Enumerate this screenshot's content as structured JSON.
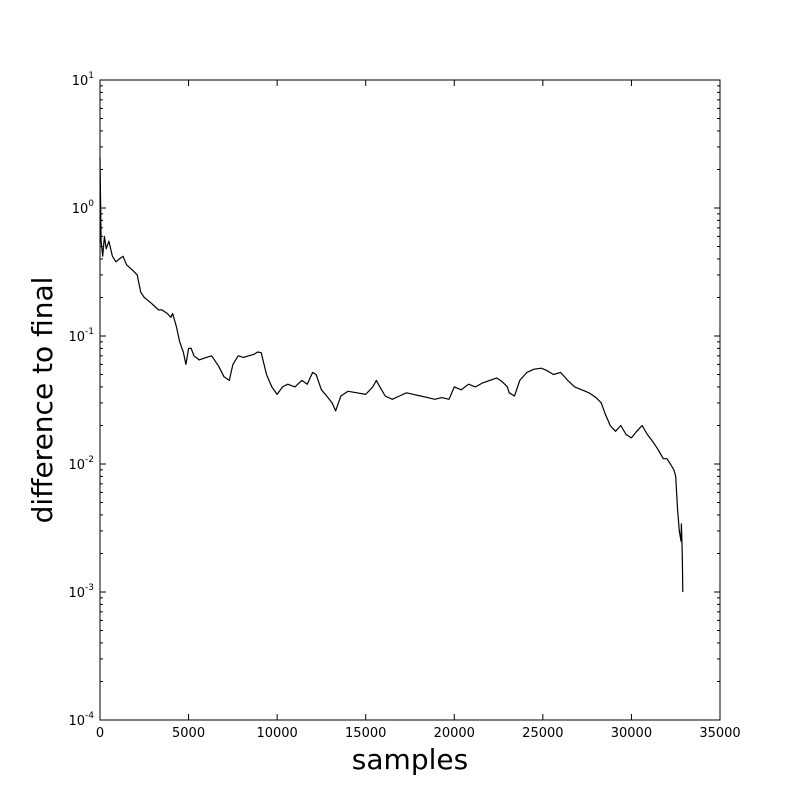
{
  "chart_data": {
    "type": "line",
    "title": "",
    "xlabel": "samples",
    "ylabel": "difference to final",
    "xlim": [
      0,
      35000
    ],
    "ylim": [
      0.0001,
      10
    ],
    "yscale": "log",
    "grid": false,
    "legend": "none",
    "x_ticks": [
      "0",
      "5000",
      "10000",
      "15000",
      "20000",
      "25000",
      "30000",
      "35000"
    ],
    "y_ticks": [
      {
        "base": "10",
        "exp": "1"
      },
      {
        "base": "10",
        "exp": "0"
      },
      {
        "base": "10",
        "exp": "-1"
      },
      {
        "base": "10",
        "exp": "-2"
      },
      {
        "base": "10",
        "exp": "-3"
      },
      {
        "base": "10",
        "exp": "-4"
      }
    ],
    "line_color": "#000000",
    "series": [
      {
        "x": [
          0,
          60,
          150,
          250,
          350,
          500,
          700,
          900,
          1100,
          1300,
          1500,
          1800,
          2100,
          2300,
          2500,
          2700,
          2900,
          3100,
          3300,
          3500,
          3800,
          4000,
          4100,
          4300,
          4500,
          4700,
          4850,
          5000,
          5150,
          5300,
          5600,
          6000,
          6300,
          6700,
          7000,
          7300,
          7500,
          7800,
          8100,
          8400,
          8700,
          8900,
          9100,
          9400,
          9700,
          10000,
          10300,
          10600,
          11000,
          11400,
          11700,
          12000,
          12200,
          12500,
          12800,
          13100,
          13300,
          13600,
          14000,
          14500,
          15000,
          15400,
          15600,
          15800,
          16100,
          16500,
          16900,
          17300,
          17700,
          18100,
          18500,
          18900,
          19300,
          19700,
          20000,
          20400,
          20800,
          21200,
          21600,
          22000,
          22400,
          22700,
          23000,
          23100,
          23400,
          23700,
          24100,
          24500,
          24900,
          25200,
          25600,
          26000,
          26400,
          26800,
          27200,
          27600,
          28000,
          28300,
          28500,
          28800,
          29100,
          29400,
          29700,
          30000,
          30300,
          30600,
          30900,
          31200,
          31500,
          31800,
          32000,
          32200,
          32400,
          32500,
          32550,
          32600,
          32700,
          32800,
          32820,
          32850,
          32870,
          32900
        ],
        "y": [
          2.5,
          0.55,
          0.42,
          0.6,
          0.48,
          0.55,
          0.42,
          0.38,
          0.4,
          0.42,
          0.36,
          0.33,
          0.3,
          0.22,
          0.2,
          0.19,
          0.18,
          0.17,
          0.16,
          0.16,
          0.15,
          0.14,
          0.15,
          0.12,
          0.09,
          0.075,
          0.06,
          0.08,
          0.08,
          0.07,
          0.065,
          0.068,
          0.07,
          0.058,
          0.048,
          0.045,
          0.06,
          0.07,
          0.068,
          0.07,
          0.072,
          0.075,
          0.074,
          0.05,
          0.04,
          0.035,
          0.04,
          0.042,
          0.04,
          0.045,
          0.042,
          0.052,
          0.05,
          0.038,
          0.034,
          0.03,
          0.026,
          0.034,
          0.037,
          0.036,
          0.035,
          0.04,
          0.045,
          0.04,
          0.034,
          0.032,
          0.034,
          0.036,
          0.035,
          0.034,
          0.033,
          0.032,
          0.033,
          0.032,
          0.04,
          0.038,
          0.042,
          0.04,
          0.043,
          0.045,
          0.047,
          0.044,
          0.04,
          0.036,
          0.034,
          0.045,
          0.052,
          0.055,
          0.056,
          0.054,
          0.05,
          0.052,
          0.045,
          0.04,
          0.038,
          0.036,
          0.033,
          0.03,
          0.025,
          0.02,
          0.018,
          0.02,
          0.017,
          0.016,
          0.018,
          0.02,
          0.017,
          0.015,
          0.013,
          0.011,
          0.011,
          0.01,
          0.009,
          0.008,
          0.006,
          0.0045,
          0.003,
          0.0025,
          0.0034,
          0.0025,
          0.0019,
          0.001
        ]
      }
    ]
  }
}
